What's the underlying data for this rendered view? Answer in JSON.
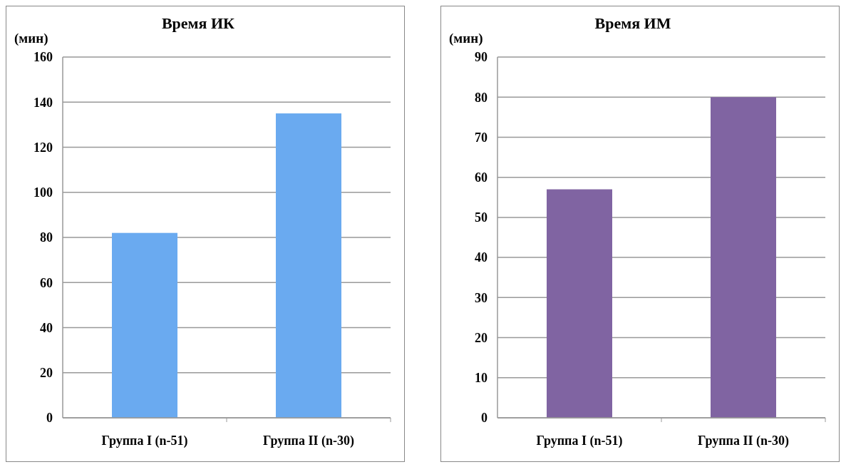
{
  "chart_data": [
    {
      "type": "bar",
      "title": "Время ИК",
      "ylabel": "(мин)",
      "categories": [
        "Группа I (n-51)",
        "Группа II (n-30)"
      ],
      "values": [
        82,
        135
      ],
      "color": "#6aaaf0",
      "ylim": [
        0,
        160
      ],
      "yticks": [
        0,
        20,
        40,
        60,
        80,
        100,
        120,
        140,
        160
      ],
      "grid": "y"
    },
    {
      "type": "bar",
      "title": "Время ИМ",
      "ylabel": "(мин)",
      "categories": [
        "Группа I (n-51)",
        "Группа II (n-30)"
      ],
      "values": [
        57,
        80
      ],
      "color": "#8064a2",
      "ylim": [
        0,
        90
      ],
      "yticks": [
        0,
        10,
        20,
        30,
        40,
        50,
        60,
        70,
        80,
        90
      ],
      "grid": "y"
    }
  ]
}
